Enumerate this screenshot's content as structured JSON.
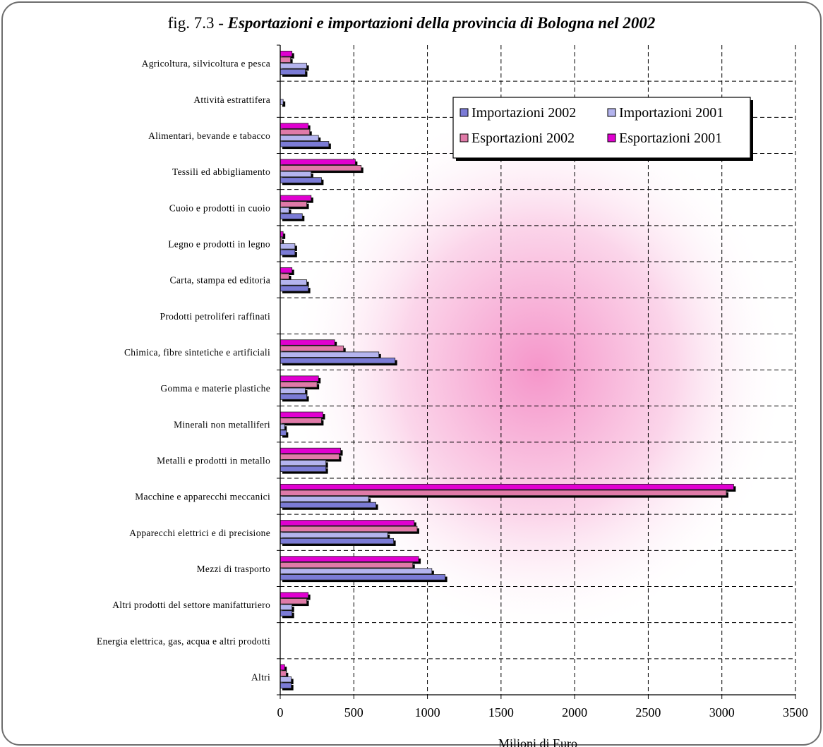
{
  "title": {
    "prefix": "fig. 7.3 - ",
    "main": "Esportazioni e importazioni della provincia di Bologna nel 2002"
  },
  "colors": {
    "imp2002": "#7b7bd6",
    "imp2001": "#b4b4ee",
    "exp2002": "#e07aa8",
    "exp2001": "#e000d0",
    "background_glow": "#f48ac4"
  },
  "chart_data": {
    "type": "bar",
    "orientation": "horizontal",
    "categories": [
      "Agricoltura, silvicoltura e pesca",
      "Attività estrattifera",
      "Alimentari, bevande e tabacco",
      "Tessili ed abbigliamento",
      "Cuoio e prodotti in cuoio",
      "Legno e prodotti in legno",
      "Carta, stampa ed editoria",
      "Prodotti petroliferi raffinati",
      "Chimica, fibre sintetiche e artificiali",
      "Gomma e materie plastiche",
      "Minerali non metalliferi",
      "Metalli e prodotti in metallo",
      "Macchine e apparecchi meccanici",
      "Apparecchi elettrici e di precisione",
      "Mezzi di trasporto",
      "Altri prodotti del settore manifatturiero",
      "Energia elettrica, gas, acqua e altri prodotti",
      "Altri"
    ],
    "series": [
      {
        "name": "Esportazioni 2001",
        "key": "exp2001",
        "values": [
          80,
          0,
          190,
          510,
          210,
          20,
          80,
          0,
          370,
          260,
          290,
          410,
          3080,
          910,
          940,
          190,
          0,
          30
        ]
      },
      {
        "name": "Esportazioni 2002",
        "key": "exp2002",
        "values": [
          70,
          0,
          200,
          550,
          180,
          10,
          60,
          0,
          430,
          250,
          280,
          400,
          3030,
          930,
          900,
          180,
          0,
          40
        ]
      },
      {
        "name": "Importazioni 2001",
        "key": "imp2001",
        "values": [
          180,
          20,
          260,
          210,
          60,
          100,
          180,
          0,
          670,
          170,
          30,
          310,
          600,
          730,
          1030,
          80,
          0,
          75
        ]
      },
      {
        "name": "Importazioni 2002",
        "key": "imp2002",
        "values": [
          170,
          0,
          330,
          280,
          150,
          100,
          190,
          0,
          780,
          180,
          40,
          310,
          650,
          770,
          1120,
          80,
          0,
          75
        ]
      }
    ],
    "legend": {
      "entries": [
        "Importazioni 2002",
        "Importazioni 2001",
        "Esportazioni 2002",
        "Esportazioni 2001"
      ],
      "keys": [
        "imp2002",
        "imp2001",
        "exp2002",
        "exp2001"
      ],
      "position": "top-right"
    },
    "xlim": [
      0,
      3500
    ],
    "xticks": [
      0,
      500,
      1000,
      1500,
      2000,
      2500,
      3000,
      3500
    ],
    "xlabel": "Milioni di Euro",
    "ylabel": "",
    "grid": true
  }
}
